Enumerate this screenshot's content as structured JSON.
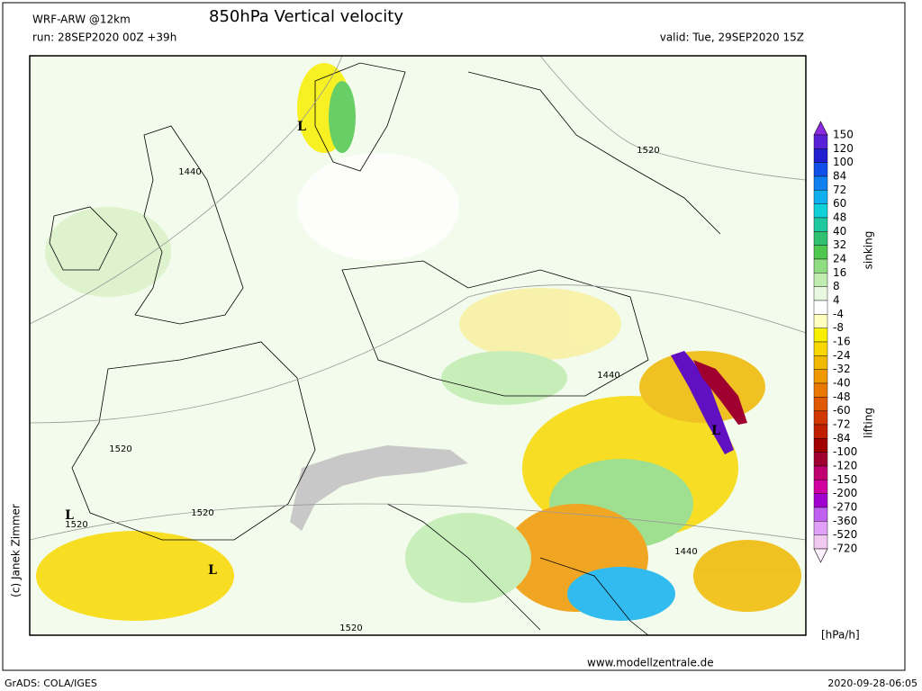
{
  "header": {
    "model": "WRF-ARW @12km",
    "title": "850hPa Vertical velocity",
    "run": "run: 28SEP2020 00Z +39h",
    "valid": "valid: Tue, 29SEP2020 15Z"
  },
  "map": {
    "lows": [
      "L",
      "L",
      "L",
      "L"
    ],
    "contours": [
      "1440",
      "1440",
      "1440",
      "1520",
      "1520",
      "1520",
      "1520",
      "1520"
    ]
  },
  "colorbar": {
    "labels": [
      "150",
      "120",
      "100",
      "84",
      "72",
      "60",
      "48",
      "40",
      "32",
      "24",
      "16",
      "8",
      "4",
      "-4",
      "-8",
      "-16",
      "-24",
      "-32",
      "-40",
      "-48",
      "-60",
      "-72",
      "-84",
      "-100",
      "-120",
      "-150",
      "-200",
      "-270",
      "-360",
      "-520",
      "-720"
    ],
    "colors": [
      "#8a2be2",
      "#5a20d8",
      "#2020d0",
      "#1050e8",
      "#1080f0",
      "#10b0f0",
      "#10d0d8",
      "#20c8a0",
      "#30c070",
      "#50c850",
      "#90dc80",
      "#c0ecb0",
      "#e8f8e0",
      "#ffffff",
      "#ffffc0",
      "#f8f000",
      "#f8d800",
      "#f0b800",
      "#f09800",
      "#e87800",
      "#e05800",
      "#d03800",
      "#c02000",
      "#a00000",
      "#a00030",
      "#c00070",
      "#d000a0",
      "#a000d0",
      "#c060f0",
      "#e0a0f8",
      "#f0c8f0",
      "#fff0ff"
    ],
    "upper": "sinking",
    "lower": "lifting",
    "unit": "[hPa/h]"
  },
  "credit": "(c) Janek Zimmer",
  "footer": {
    "website": "www.modellzentrale.de",
    "software": "GrADS: COLA/IGES",
    "timestamp": "2020-09-28-06:05"
  }
}
